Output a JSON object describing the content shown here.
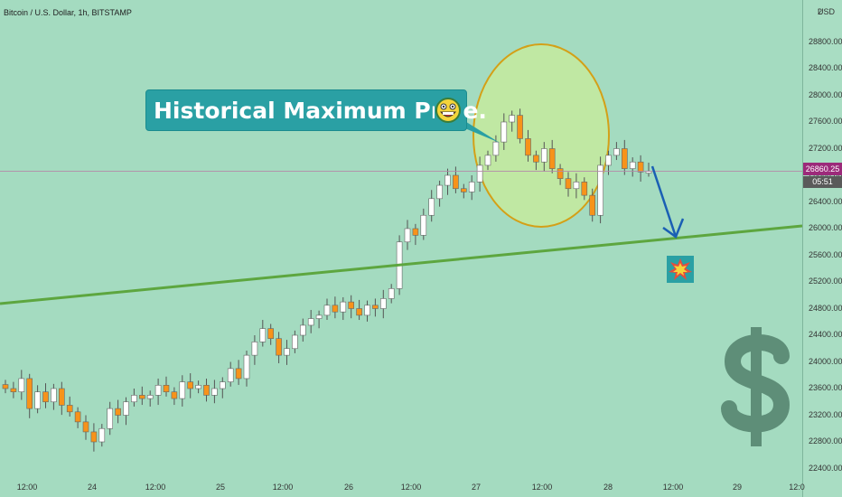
{
  "header": {
    "title": "Bitcoin / U.S. Dollar, 1h, BITSTAMP"
  },
  "axis": {
    "currency": "USD",
    "top_partial": "2"
  },
  "price_tag": {
    "price": "26860.25",
    "countdown": "05:51"
  },
  "annotation": {
    "text": "Historical Maximum Price."
  },
  "colors": {
    "background": "#a4dbc0",
    "up_candle": "#ffffff",
    "down_candle": "#f7931a",
    "trendline": "#5da63f",
    "circle_fill": "#c9ec9a",
    "circle_stroke": "#d4a017",
    "arrow": "#1a5fb4",
    "price_tag": "#9c2a7a",
    "callout": "#2aa0a4",
    "dollar_sign": "#5e8e78"
  },
  "icons": [
    "grinning-face-icon",
    "explosion-icon",
    "dollar-sign-icon"
  ],
  "chart_data": {
    "type": "candlestick",
    "title": "Bitcoin / U.S. Dollar, 1h, BITSTAMP",
    "x_tick_labels": [
      "12:00",
      "24",
      "12:00",
      "25",
      "12:00",
      "26",
      "12:00",
      "27",
      "12:00",
      "28",
      "12:00",
      "29",
      "12:0"
    ],
    "y_tick_labels": [
      "28800.00",
      "28400.00",
      "28000.00",
      "27600.00",
      "27200.00",
      "26800.00",
      "26400.00",
      "26000.00",
      "25600.00",
      "25200.00",
      "24800.00",
      "24400.00",
      "24000.00",
      "23600.00",
      "23200.00",
      "22800.00",
      "22400.00"
    ],
    "y_range": [
      22250,
      29200
    ],
    "series": [
      {
        "type": "price_path_close_approx",
        "values": [
          23600,
          23550,
          23750,
          23300,
          23550,
          23400,
          23600,
          23350,
          23250,
          23100,
          22950,
          22800,
          23000,
          23300,
          23200,
          23400,
          23500,
          23450,
          23500,
          23650,
          23550,
          23450,
          23700,
          23600,
          23650,
          23500,
          23600,
          23700,
          23900,
          23750,
          24100,
          24300,
          24500,
          24350,
          24100,
          24200,
          24400,
          24550,
          24650,
          24700,
          24850,
          24750,
          24900,
          24800,
          24700,
          24850,
          24800,
          24950,
          25100,
          25800,
          26000,
          25900,
          26200,
          26450,
          26650,
          26800,
          26600,
          26550,
          26700,
          26950,
          27100,
          27300,
          27600,
          27700,
          27350,
          27100,
          27000,
          27200,
          26900,
          26750,
          26600,
          26700,
          26500,
          26200,
          26950,
          27100,
          27200,
          26900,
          27000,
          26850,
          26860.25
        ]
      }
    ],
    "annotations": [
      "Historical Maximum Price."
    ],
    "last_price": "26860.25",
    "current_candle_countdown": "05:51",
    "grid": false
  }
}
